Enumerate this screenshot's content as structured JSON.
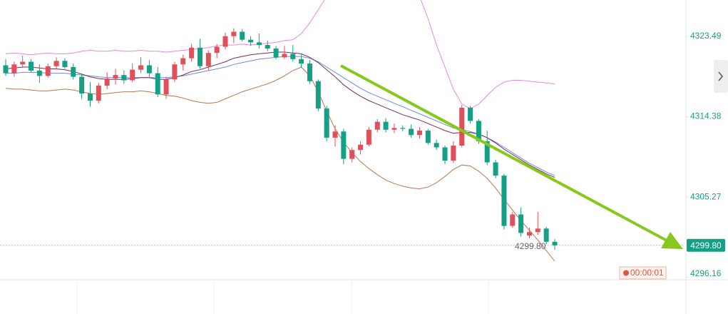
{
  "chart_data": {
    "type": "candlestick",
    "up_color": "#e0505a",
    "down_color": "#14a085",
    "open": [
      4320.2,
      4319.3,
      4320.3,
      4320.6,
      4319.6,
      4319.0,
      4320.1,
      4320.7,
      4320.0,
      4318.9,
      4317.0,
      4316.2,
      4317.9,
      4318.7,
      4319.1,
      4318.5,
      4319.7,
      4320.2,
      4319.3,
      4316.9,
      4318.6,
      4320.3,
      4321.0,
      4322.2,
      4320.1,
      4321.6,
      4322.3,
      4323.5,
      4324.0,
      4323.1,
      4322.8,
      4322.5,
      4322.1,
      4321.1,
      4321.5,
      4320.9,
      4320.4,
      4318.4,
      4315.3,
      4312.0,
      4312.7,
      4309.6,
      4310.6,
      4311.2,
      4312.9,
      4313.8,
      4312.9,
      4313.1,
      4313.0,
      4312.3,
      4312.8,
      4311.4,
      4310.9,
      4309.4,
      4311.1,
      4315.4,
      4313.9,
      4311.6,
      4309.2,
      4307.7,
      4302.0,
      4303.3,
      4300.9,
      4301.3,
      4301.7,
      4300.2
    ],
    "high": [
      4320.9,
      4320.6,
      4321.3,
      4320.9,
      4320.3,
      4320.4,
      4321.1,
      4321.0,
      4320.4,
      4319.2,
      4318.3,
      4318.2,
      4319.4,
      4319.8,
      4319.6,
      4320.4,
      4321.1,
      4320.8,
      4320.0,
      4318.9,
      4320.6,
      4321.4,
      4322.6,
      4323.2,
      4321.9,
      4322.6,
      4323.9,
      4324.4,
      4324.3,
      4323.5,
      4323.8,
      4323.0,
      4322.4,
      4322.4,
      4322.5,
      4321.5,
      4320.8,
      4318.6,
      4315.6,
      4313.4,
      4313.0,
      4310.9,
      4311.6,
      4313.2,
      4314.1,
      4314.2,
      4313.6,
      4313.4,
      4313.5,
      4313.2,
      4313.0,
      4311.8,
      4311.1,
      4311.6,
      4315.7,
      4315.6,
      4314.1,
      4312.8,
      4309.5,
      4307.9,
      4303.6,
      4304.1,
      4301.8,
      4303.6,
      4301.9,
      4300.5
    ],
    "low": [
      4319.0,
      4318.9,
      4319.9,
      4319.4,
      4318.2,
      4318.8,
      4319.7,
      4319.8,
      4318.6,
      4316.4,
      4315.5,
      4315.9,
      4317.5,
      4318.0,
      4318.1,
      4318.3,
      4319.3,
      4318.9,
      4316.6,
      4316.4,
      4318.3,
      4319.6,
      4320.6,
      4319.8,
      4319.6,
      4321.0,
      4322.0,
      4322.7,
      4322.9,
      4322.4,
      4322.1,
      4321.8,
      4320.9,
      4320.9,
      4320.6,
      4319.9,
      4318.1,
      4315.0,
      4311.6,
      4311.0,
      4309.0,
      4309.2,
      4310.1,
      4311.0,
      4312.6,
      4312.6,
      4312.5,
      4312.7,
      4312.0,
      4311.9,
      4311.2,
      4310.6,
      4309.0,
      4309.1,
      4310.9,
      4313.6,
      4311.3,
      4308.9,
      4307.4,
      4301.6,
      4301.8,
      4300.8,
      4300.6,
      4301.0,
      4299.9,
      4299.3
    ],
    "close": [
      4319.3,
      4320.3,
      4320.6,
      4319.6,
      4319.0,
      4320.1,
      4320.7,
      4320.0,
      4318.9,
      4317.0,
      4316.2,
      4317.9,
      4318.7,
      4319.1,
      4318.5,
      4319.7,
      4320.2,
      4319.3,
      4316.9,
      4318.6,
      4320.3,
      4321.0,
      4322.2,
      4320.1,
      4321.6,
      4322.3,
      4323.5,
      4324.0,
      4323.1,
      4322.8,
      4322.5,
      4322.1,
      4321.1,
      4321.5,
      4320.9,
      4320.4,
      4318.4,
      4315.3,
      4312.0,
      4312.7,
      4309.6,
      4310.6,
      4311.2,
      4312.9,
      4313.8,
      4312.9,
      4313.1,
      4313.0,
      4312.3,
      4312.8,
      4311.4,
      4310.9,
      4309.4,
      4311.1,
      4315.4,
      4313.9,
      4311.6,
      4309.2,
      4307.7,
      4302.0,
      4303.3,
      4301.2,
      4301.3,
      4301.7,
      4300.2,
      4299.8
    ],
    "lines": [
      {
        "color": "#e58ad8",
        "values": [
          4321.5,
          4321.6,
          4321.5,
          4321.4,
          4321.5,
          4321.6,
          4321.5,
          4321.5,
          4321.6,
          4321.8,
          4321.9,
          4321.8,
          4321.8,
          4321.9,
          4321.8,
          4321.8,
          4321.9,
          4321.8,
          4321.8,
          4321.7,
          4321.8,
          4321.9,
          4322.0,
          4322.1,
          4322.2,
          4322.4,
          4322.5,
          4322.5,
          4322.6,
          4322.5,
          4322.6,
          4322.7,
          4322.8,
          4323.0,
          4323.1,
          4323.8,
          4325.0,
          4326.5,
          4328.0,
          4330,
          4331,
          4332,
          4332,
          4332,
          4332,
          4332,
          4332,
          4331,
          4329.5,
          4328,
          4325.5,
          4322.5,
          4320,
          4317.5,
          4315.8,
          4315.3,
          4315.8,
          4316.8,
          4317.7,
          4318.3,
          4318.5,
          4318.5,
          4318.4,
          4318.3,
          4318.2,
          4318.1
        ]
      },
      {
        "color": "#b8764e",
        "values": [
          4317.6,
          4317.5,
          4317.5,
          4317.4,
          4317.3,
          4317.3,
          4317.4,
          4317.5,
          4317.4,
          4317.2,
          4317.0,
          4316.9,
          4317.0,
          4317.1,
          4317.2,
          4317.2,
          4317.3,
          4317.2,
          4317.0,
          4316.8,
          4316.7,
          4316.5,
          4316.2,
          4316.0,
          4315.9,
          4316.0,
          4316.4,
          4316.8,
          4317.2,
          4317.5,
          4317.8,
          4318.1,
          4318.5,
          4319.0,
          4319.6,
          4320.0,
          4319.0,
          4317.2,
          4315.0,
          4313.0,
          4311.5,
          4310.3,
          4309.3,
          4308.5,
          4307.8,
          4307.2,
          4306.8,
          4306.5,
          4306.3,
          4306.2,
          4306.4,
          4306.9,
          4307.6,
          4308.4,
          4308.9,
          4308.8,
          4308.2,
          4307.4,
          4306.3,
          4305.0,
          4303.8,
          4302.6,
          4301.5,
          4300.4,
          4299.2,
          4298.0
        ]
      },
      {
        "color": "#6f8ae0",
        "values": [
          4319.3,
          4319.3,
          4319.4,
          4319.4,
          4319.4,
          4319.3,
          4319.3,
          4319.3,
          4319.2,
          4319.1,
          4319.0,
          4318.9,
          4318.8,
          4318.8,
          4318.8,
          4318.8,
          4318.8,
          4318.8,
          4318.8,
          4318.8,
          4318.9,
          4319.0,
          4319.2,
          4319.4,
          4319.6,
          4319.8,
          4320.0,
          4320.3,
          4320.5,
          4320.7,
          4320.9,
          4321.0,
          4321.1,
          4321.2,
          4321.2,
          4321.2,
          4321.0,
          4320.6,
          4320.0,
          4319.4,
          4318.8,
          4318.2,
          4317.6,
          4317.1,
          4316.7,
          4316.3,
          4315.9,
          4315.5,
          4315.1,
          4314.7,
          4314.3,
          4313.9,
          4313.5,
          4313.1,
          4312.9,
          4312.7,
          4312.4,
          4312.0,
          4311.5,
          4310.9,
          4310.3,
          4309.7,
          4309.1,
          4308.6,
          4308.1,
          4307.7
        ]
      },
      {
        "color": "#7a2d55",
        "values": [
          4319.8,
          4319.9,
          4320.0,
          4320.0,
          4319.9,
          4319.8,
          4319.8,
          4319.7,
          4319.5,
          4319.2,
          4318.9,
          4318.7,
          4318.6,
          4318.6,
          4318.6,
          4318.7,
          4318.8,
          4318.8,
          4318.6,
          4318.6,
          4318.8,
          4319.1,
          4319.5,
          4319.7,
          4320.0,
          4320.3,
          4320.6,
          4321.0,
          4321.2,
          4321.4,
          4321.5,
          4321.6,
          4321.7,
          4321.7,
          4321.6,
          4321.5,
          4321.1,
          4320.5,
          4319.7,
          4318.9,
          4318.0,
          4317.3,
          4316.7,
          4316.2,
          4315.8,
          4315.4,
          4315.0,
          4314.6,
          4314.3,
          4314.0,
          4313.6,
          4313.2,
          4312.8,
          4312.5,
          4312.6,
          4312.6,
          4312.4,
          4312.0,
          4311.4,
          4310.7,
          4310.1,
          4309.5,
          4308.9,
          4308.4,
          4307.9,
          4307.5
        ]
      }
    ],
    "ylim": [
      4295.9,
      4327.6
    ],
    "yticks": [
      4323.49,
      4314.38,
      4305.27,
      4296.16
    ],
    "current_price": {
      "value": 4299.8,
      "label": "4299.80"
    },
    "countdown": "00:00:01"
  }
}
